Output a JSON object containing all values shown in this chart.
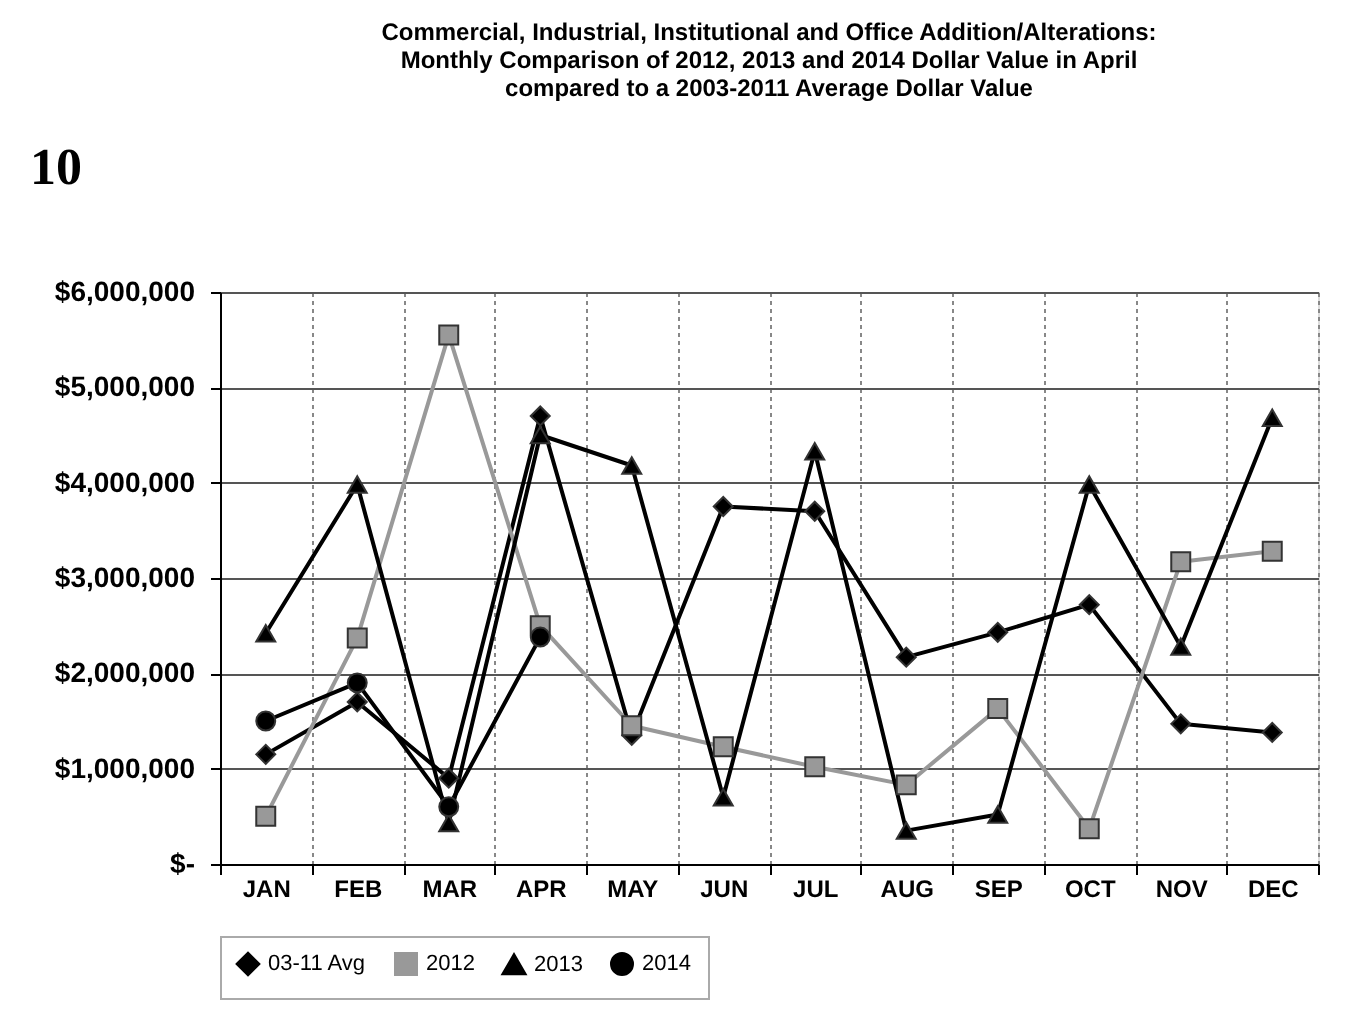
{
  "chart_data": {
    "type": "line",
    "title": "Commercial, Industrial, Institutional and Office Addition/Alterations:\nMonthly Comparison of 2012, 2013 and 2014 Dollar Value in April\ncompared to a 2003-2011 Average Dollar Value",
    "annotations": [
      "10"
    ],
    "categories": [
      "JAN",
      "FEB",
      "MAR",
      "APR",
      "MAY",
      "JUN",
      "JUL",
      "AUG",
      "SEP",
      "OCT",
      "NOV",
      "DEC"
    ],
    "series": [
      {
        "name": "03-11 Avg",
        "color": "#000000",
        "marker": "diamond",
        "values": [
          1150000,
          1700000,
          900000,
          4700000,
          1350000,
          3750000,
          3700000,
          2170000,
          2430000,
          2720000,
          1470000,
          1380000
        ]
      },
      {
        "name": "2012",
        "color": "#999999",
        "marker": "square",
        "values": [
          500000,
          2370000,
          5550000,
          2500000,
          1450000,
          1230000,
          1020000,
          830000,
          1630000,
          370000,
          3170000,
          3280000
        ]
      },
      {
        "name": "2013",
        "color": "#000000",
        "marker": "triangle",
        "values": [
          2420000,
          3980000,
          430000,
          4500000,
          4180000,
          700000,
          4330000,
          350000,
          520000,
          3980000,
          2280000,
          4680000
        ]
      },
      {
        "name": "2014",
        "color": "#000000",
        "marker": "circle",
        "values": [
          1500000,
          1900000,
          600000,
          2380000,
          null,
          null,
          null,
          null,
          null,
          null,
          null,
          null
        ]
      }
    ],
    "ylim": [
      0,
      6000000
    ],
    "yticks": [
      {
        "value": 0,
        "label": "$-"
      },
      {
        "value": 1000000,
        "label": "$1,000,000"
      },
      {
        "value": 2000000,
        "label": "$2,000,000"
      },
      {
        "value": 3000000,
        "label": "$3,000,000"
      },
      {
        "value": 4000000,
        "label": "$4,000,000"
      },
      {
        "value": 5000000,
        "label": "$5,000,000"
      },
      {
        "value": 6000000,
        "label": "$6,000,000"
      }
    ],
    "grid": true,
    "legend": "bottom",
    "line_style": "solid"
  }
}
